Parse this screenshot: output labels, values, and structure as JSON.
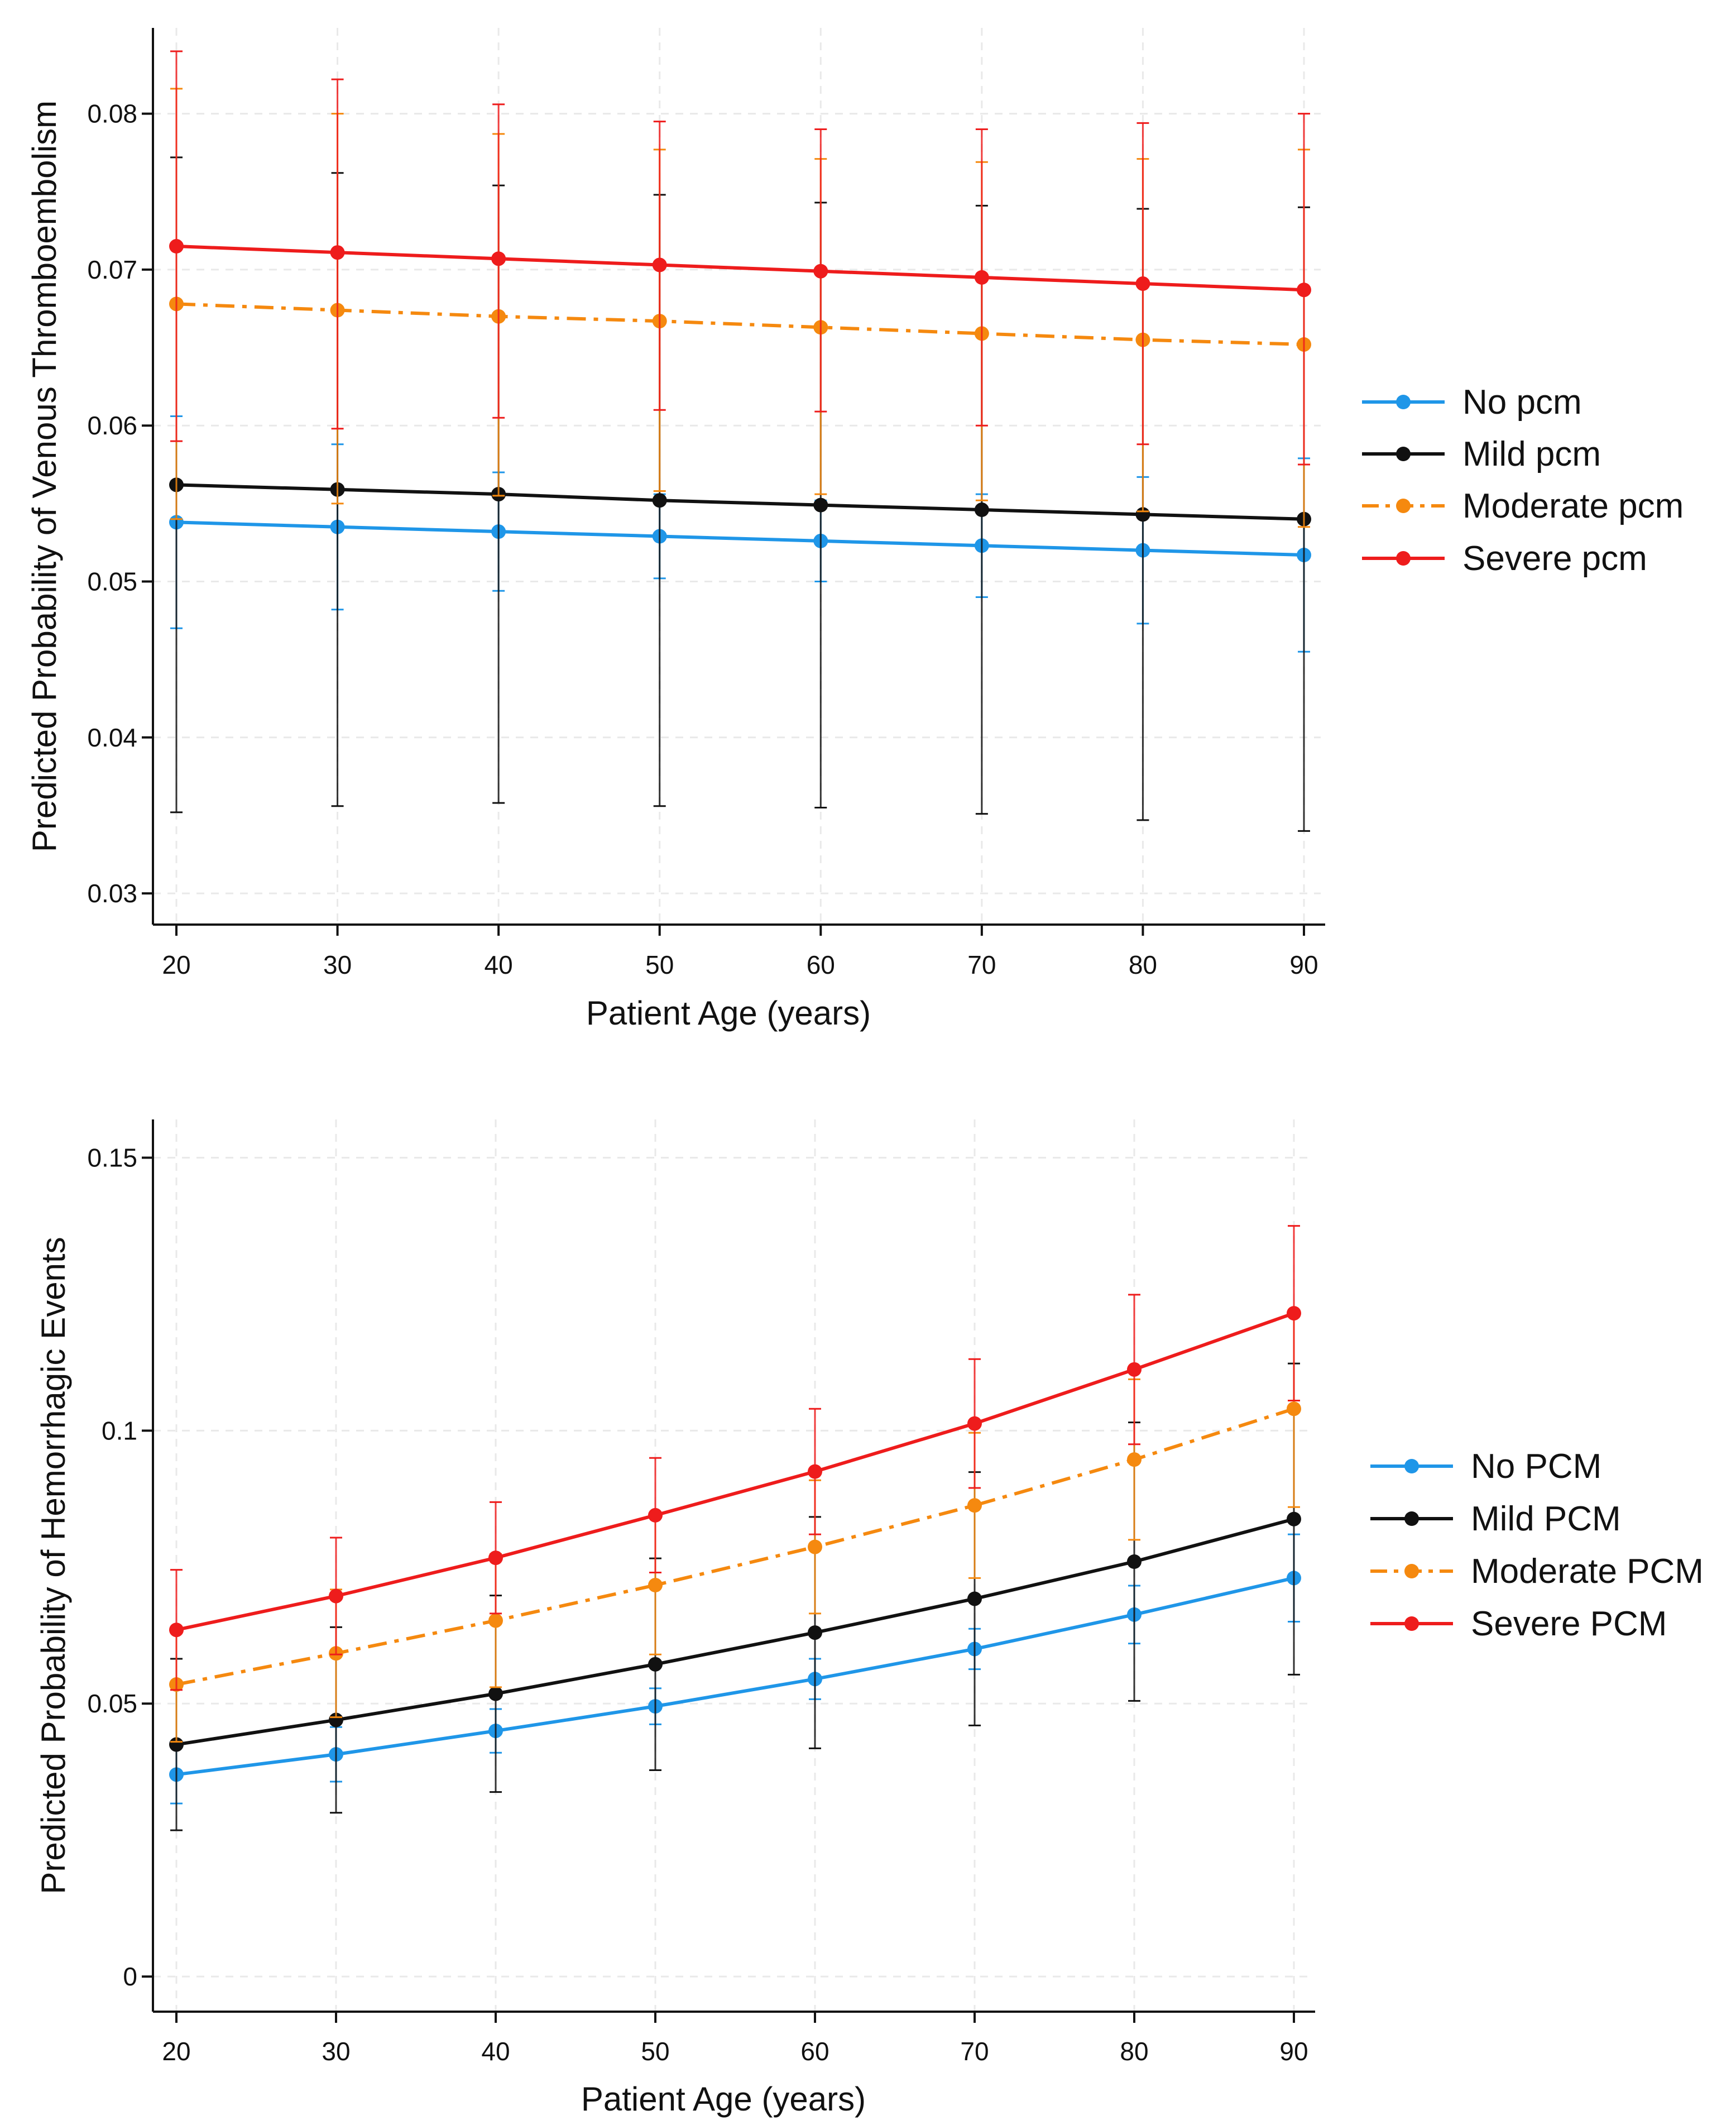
{
  "chart_data": [
    {
      "type": "line",
      "title": "",
      "xlabel": "Patient Age (years)",
      "ylabel": "Predicted Probability of Venous Thromboembolism",
      "x": [
        20,
        30,
        40,
        50,
        60,
        70,
        80,
        90
      ],
      "xlim": [
        20,
        90
      ],
      "ylim": [
        0.0285,
        0.0855
      ],
      "xticks": [
        20,
        30,
        40,
        50,
        60,
        70,
        80,
        90
      ],
      "yticks": [
        0.03,
        0.04,
        0.05,
        0.06,
        0.07,
        0.08
      ],
      "ytick_labels": [
        "0.03",
        "0.04",
        "0.05",
        "0.06",
        "0.07",
        "0.08"
      ],
      "grid": true,
      "legend_position": "right",
      "series": [
        {
          "name": "No pcm",
          "color": "#1f96e8",
          "dash": "solid",
          "values": [
            0.0538,
            0.0535,
            0.0532,
            0.0529,
            0.0526,
            0.0523,
            0.052,
            0.0517
          ],
          "ci_low": [
            0.047,
            0.0482,
            0.0494,
            0.0502,
            0.05,
            0.049,
            0.0473,
            0.0455
          ],
          "ci_high": [
            0.0606,
            0.0588,
            0.057,
            0.0556,
            0.0552,
            0.0556,
            0.0567,
            0.0579
          ]
        },
        {
          "name": "Mild pcm",
          "color": "#111111",
          "dash": "solid",
          "values": [
            0.0562,
            0.0559,
            0.0556,
            0.0552,
            0.0549,
            0.0546,
            0.0543,
            0.054
          ],
          "ci_low": [
            0.0352,
            0.0356,
            0.0358,
            0.0356,
            0.0355,
            0.0351,
            0.0347,
            0.034
          ],
          "ci_high": [
            0.0772,
            0.0762,
            0.0754,
            0.0748,
            0.0743,
            0.0741,
            0.0739,
            0.074
          ]
        },
        {
          "name": "Moderate pcm",
          "color": "#f5890f",
          "dash": "dashdot",
          "values": [
            0.0678,
            0.0674,
            0.067,
            0.0667,
            0.0663,
            0.0659,
            0.0655,
            0.0652
          ],
          "ci_low": [
            0.054,
            0.055,
            0.0555,
            0.0558,
            0.0556,
            0.0552,
            0.0545,
            0.0535
          ],
          "ci_high": [
            0.0816,
            0.08,
            0.0787,
            0.0777,
            0.0771,
            0.0769,
            0.0771,
            0.0777
          ]
        },
        {
          "name": "Severe pcm",
          "color": "#ee1c1c",
          "dash": "solid",
          "values": [
            0.0715,
            0.0711,
            0.0707,
            0.0703,
            0.0699,
            0.0695,
            0.0691,
            0.0687
          ],
          "ci_low": [
            0.059,
            0.0598,
            0.0605,
            0.061,
            0.0609,
            0.06,
            0.0588,
            0.0575
          ],
          "ci_high": [
            0.084,
            0.0822,
            0.0806,
            0.0795,
            0.079,
            0.079,
            0.0794,
            0.08
          ]
        }
      ]
    },
    {
      "type": "line",
      "title": "",
      "xlabel": "Patient Age (years)",
      "ylabel": "Predicted Probability of Hemorrhagic Events",
      "x": [
        20,
        30,
        40,
        50,
        60,
        70,
        80,
        90
      ],
      "xlim": [
        20,
        90
      ],
      "ylim": [
        -0.005,
        0.157
      ],
      "xticks": [
        20,
        30,
        40,
        50,
        60,
        70,
        80,
        90
      ],
      "yticks": [
        0,
        0.05,
        0.1,
        0.15
      ],
      "ytick_labels": [
        "0",
        "0.05",
        "0.1",
        "0.15"
      ],
      "grid": true,
      "legend_position": "right",
      "series": [
        {
          "name": "No PCM",
          "color": "#1f96e8",
          "dash": "solid",
          "values": [
            0.037,
            0.0407,
            0.045,
            0.0495,
            0.0545,
            0.06,
            0.0663,
            0.073
          ],
          "ci_low": [
            0.0317,
            0.0357,
            0.041,
            0.0462,
            0.0508,
            0.0563,
            0.061,
            0.065
          ],
          "ci_high": [
            0.0423,
            0.0457,
            0.049,
            0.0528,
            0.0582,
            0.0637,
            0.0716,
            0.081
          ]
        },
        {
          "name": "Mild PCM",
          "color": "#111111",
          "dash": "solid",
          "values": [
            0.0425,
            0.047,
            0.0518,
            0.0572,
            0.063,
            0.0692,
            0.076,
            0.0838
          ],
          "ci_low": [
            0.0268,
            0.03,
            0.0338,
            0.0378,
            0.0418,
            0.046,
            0.0505,
            0.0553
          ],
          "ci_high": [
            0.0582,
            0.064,
            0.0698,
            0.0766,
            0.0842,
            0.0924,
            0.1015,
            0.1123
          ]
        },
        {
          "name": "Moderate PCM",
          "color": "#f5890f",
          "dash": "dashdot",
          "values": [
            0.0535,
            0.0592,
            0.0652,
            0.0717,
            0.0787,
            0.0863,
            0.0947,
            0.104
          ],
          "ci_low": [
            0.043,
            0.0475,
            0.053,
            0.059,
            0.0665,
            0.073,
            0.08,
            0.086
          ],
          "ci_high": [
            0.064,
            0.0709,
            0.0774,
            0.0844,
            0.0909,
            0.0996,
            0.1094,
            0.122
          ]
        },
        {
          "name": "Severe PCM",
          "color": "#ee1c1c",
          "dash": "solid",
          "values": [
            0.0635,
            0.0697,
            0.0767,
            0.0845,
            0.0925,
            0.1013,
            0.1112,
            0.1215
          ],
          "ci_low": [
            0.0525,
            0.059,
            0.0665,
            0.074,
            0.081,
            0.0895,
            0.0975,
            0.1055
          ],
          "ci_high": [
            0.0745,
            0.0804,
            0.0869,
            0.095,
            0.104,
            0.1131,
            0.1249,
            0.1375
          ]
        }
      ]
    }
  ]
}
